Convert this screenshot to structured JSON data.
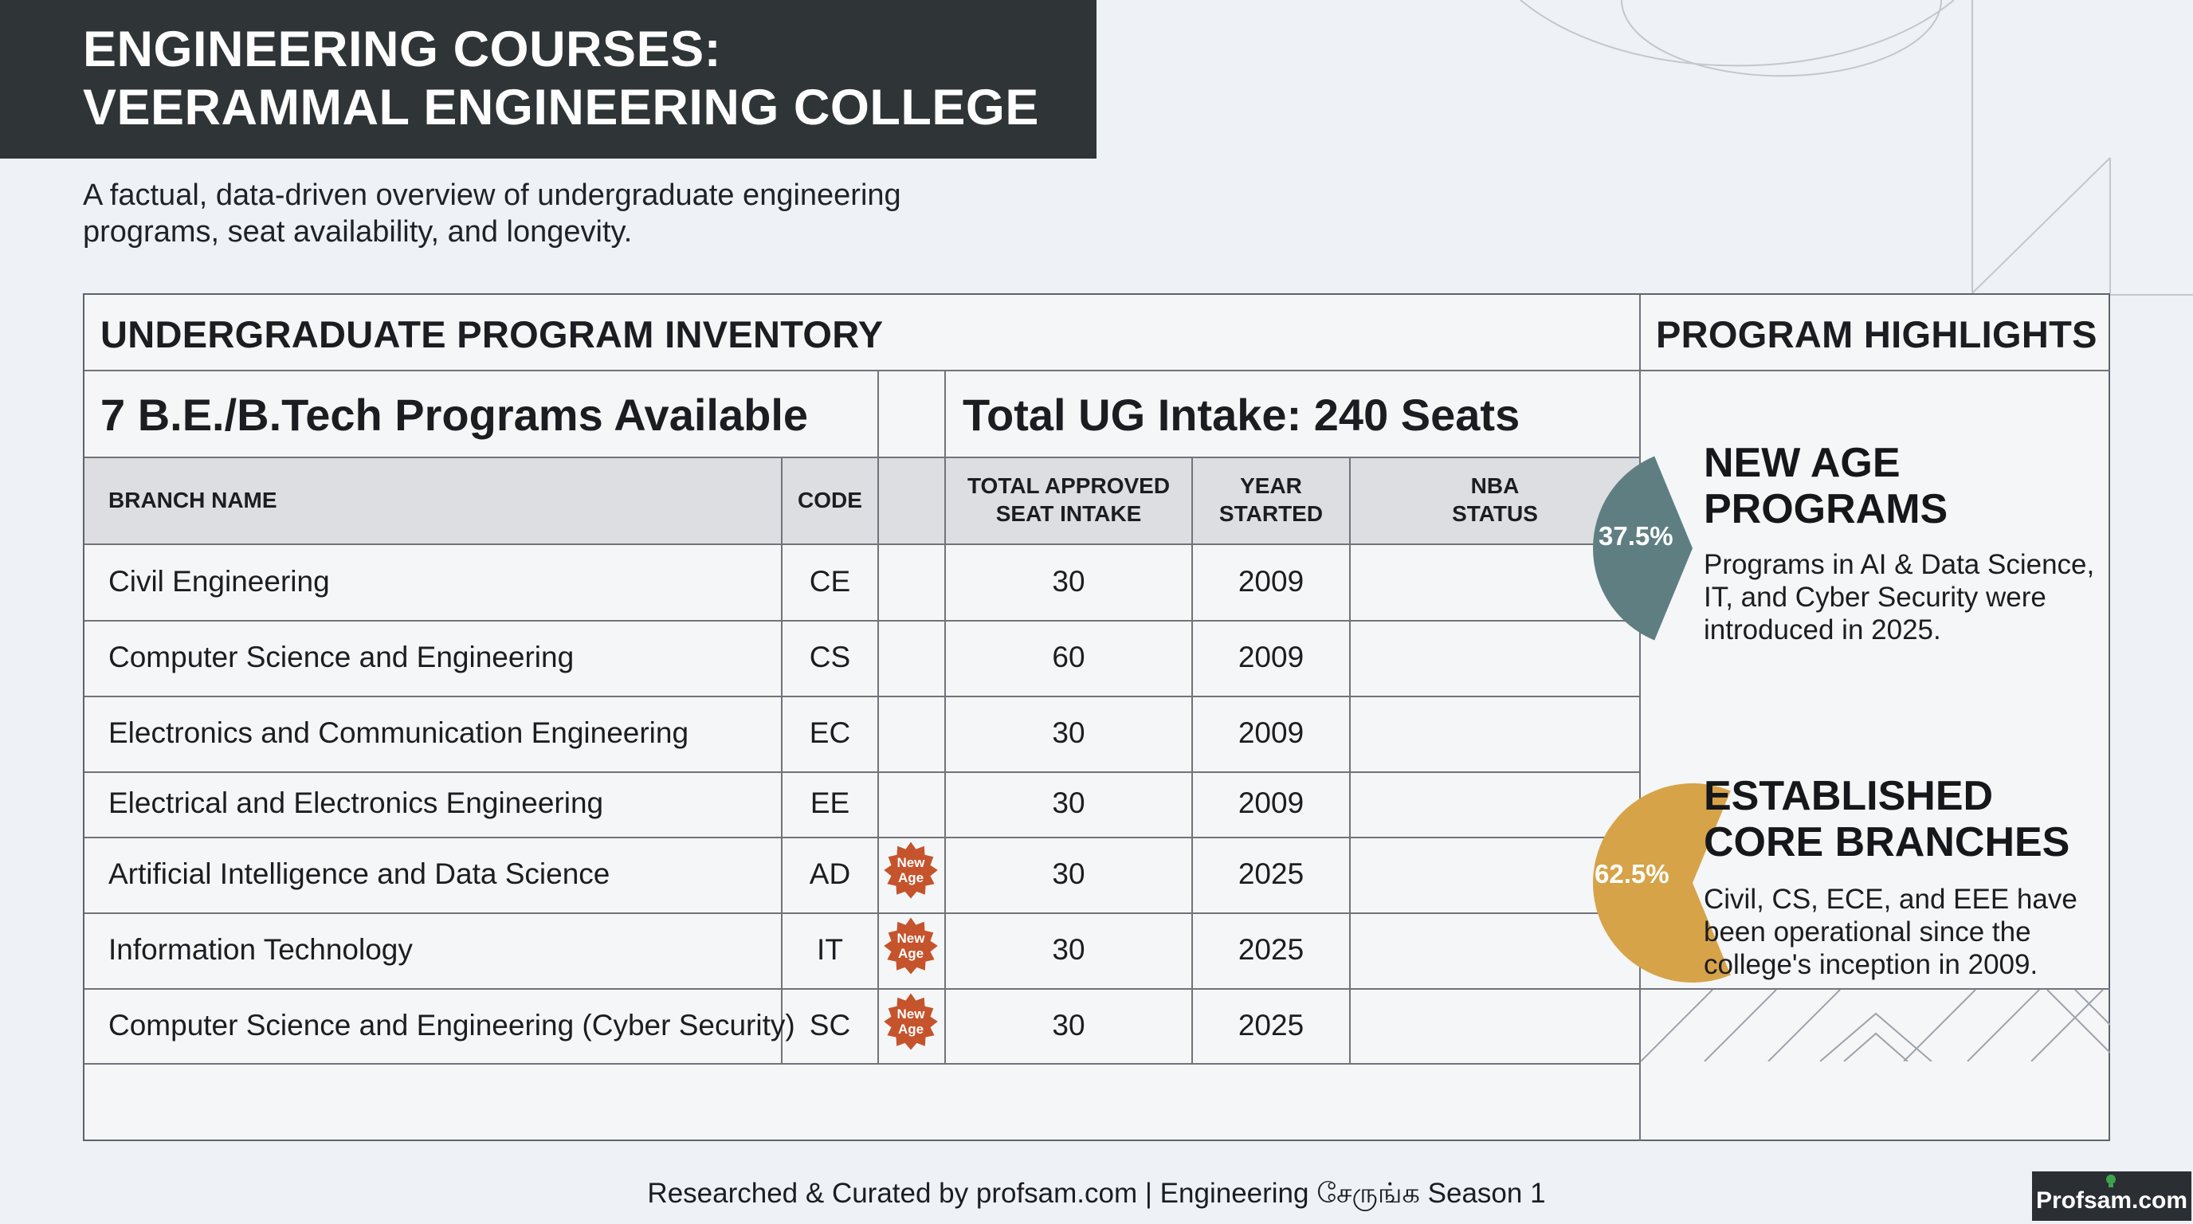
{
  "header": {
    "title_line1": "ENGINEERING COURSES:",
    "title_line2": "VEERAMMAL ENGINEERING COLLEGE",
    "subtitle_line1": "A factual, data-driven overview of undergraduate engineering",
    "subtitle_line2": "programs, seat availability, and longevity."
  },
  "inventory": {
    "heading": "UNDERGRADUATE PROGRAM INVENTORY",
    "programs_available": "7 B.E./B.Tech Programs Available",
    "total_intake": "Total UG Intake: 240 Seats",
    "columns": {
      "branch": "BRANCH NAME",
      "code": "CODE",
      "intake_line1": "TOTAL APPROVED",
      "intake_line2": "SEAT INTAKE",
      "year_line1": "YEAR",
      "year_line2": "STARTED",
      "nba_line1": "NBA",
      "nba_line2": "STATUS"
    },
    "badge_line1": "New",
    "badge_line2": "Age",
    "badge_color": "#c5532c",
    "rows": [
      {
        "branch": "Civil Engineering",
        "code": "CE",
        "intake": "30",
        "year": "2009",
        "nba": "",
        "new_age": false
      },
      {
        "branch": "Computer Science and Engineering",
        "code": "CS",
        "intake": "60",
        "year": "2009",
        "nba": "",
        "new_age": false
      },
      {
        "branch": "Electronics and Communication Engineering",
        "code": "EC",
        "intake": "30",
        "year": "2009",
        "nba": "",
        "new_age": false
      },
      {
        "branch": "Electrical and Electronics Engineering",
        "code": "EE",
        "intake": "30",
        "year": "2009",
        "nba": "",
        "new_age": false
      },
      {
        "branch": "Artificial Intelligence and Data Science",
        "code": "AD",
        "intake": "30",
        "year": "2025",
        "nba": "",
        "new_age": true
      },
      {
        "branch": "Information Technology",
        "code": "IT",
        "intake": "30",
        "year": "2025",
        "nba": "",
        "new_age": true
      },
      {
        "branch": "Computer Science and Engineering (Cyber Security)",
        "code": "SC",
        "intake": "30",
        "year": "2025",
        "nba": "",
        "new_age": true
      }
    ]
  },
  "highlights": {
    "heading": "PROGRAM HIGHLIGHTS",
    "items": [
      {
        "percent": "37.5%",
        "share": 0.375,
        "color": "#5e7e82",
        "title_line1": "NEW AGE",
        "title_line2": "PROGRAMS",
        "desc_line1": "Programs in AI & Data Science,",
        "desc_line2": "IT, and Cyber Security were",
        "desc_line3": "introduced in 2025."
      },
      {
        "percent": "62.5%",
        "share": 0.625,
        "color": "#d6a349",
        "title_line1": "ESTABLISHED",
        "title_line2": "CORE BRANCHES",
        "desc_line1": "Civil, CS, ECE, and EEE have",
        "desc_line2": "been operational since the",
        "desc_line3": "college's inception in 2009."
      }
    ]
  },
  "footer": {
    "credit": "Researched & Curated by profsam.com | Engineering சேருங்க Season 1",
    "logo_text": "Profsam.com"
  }
}
